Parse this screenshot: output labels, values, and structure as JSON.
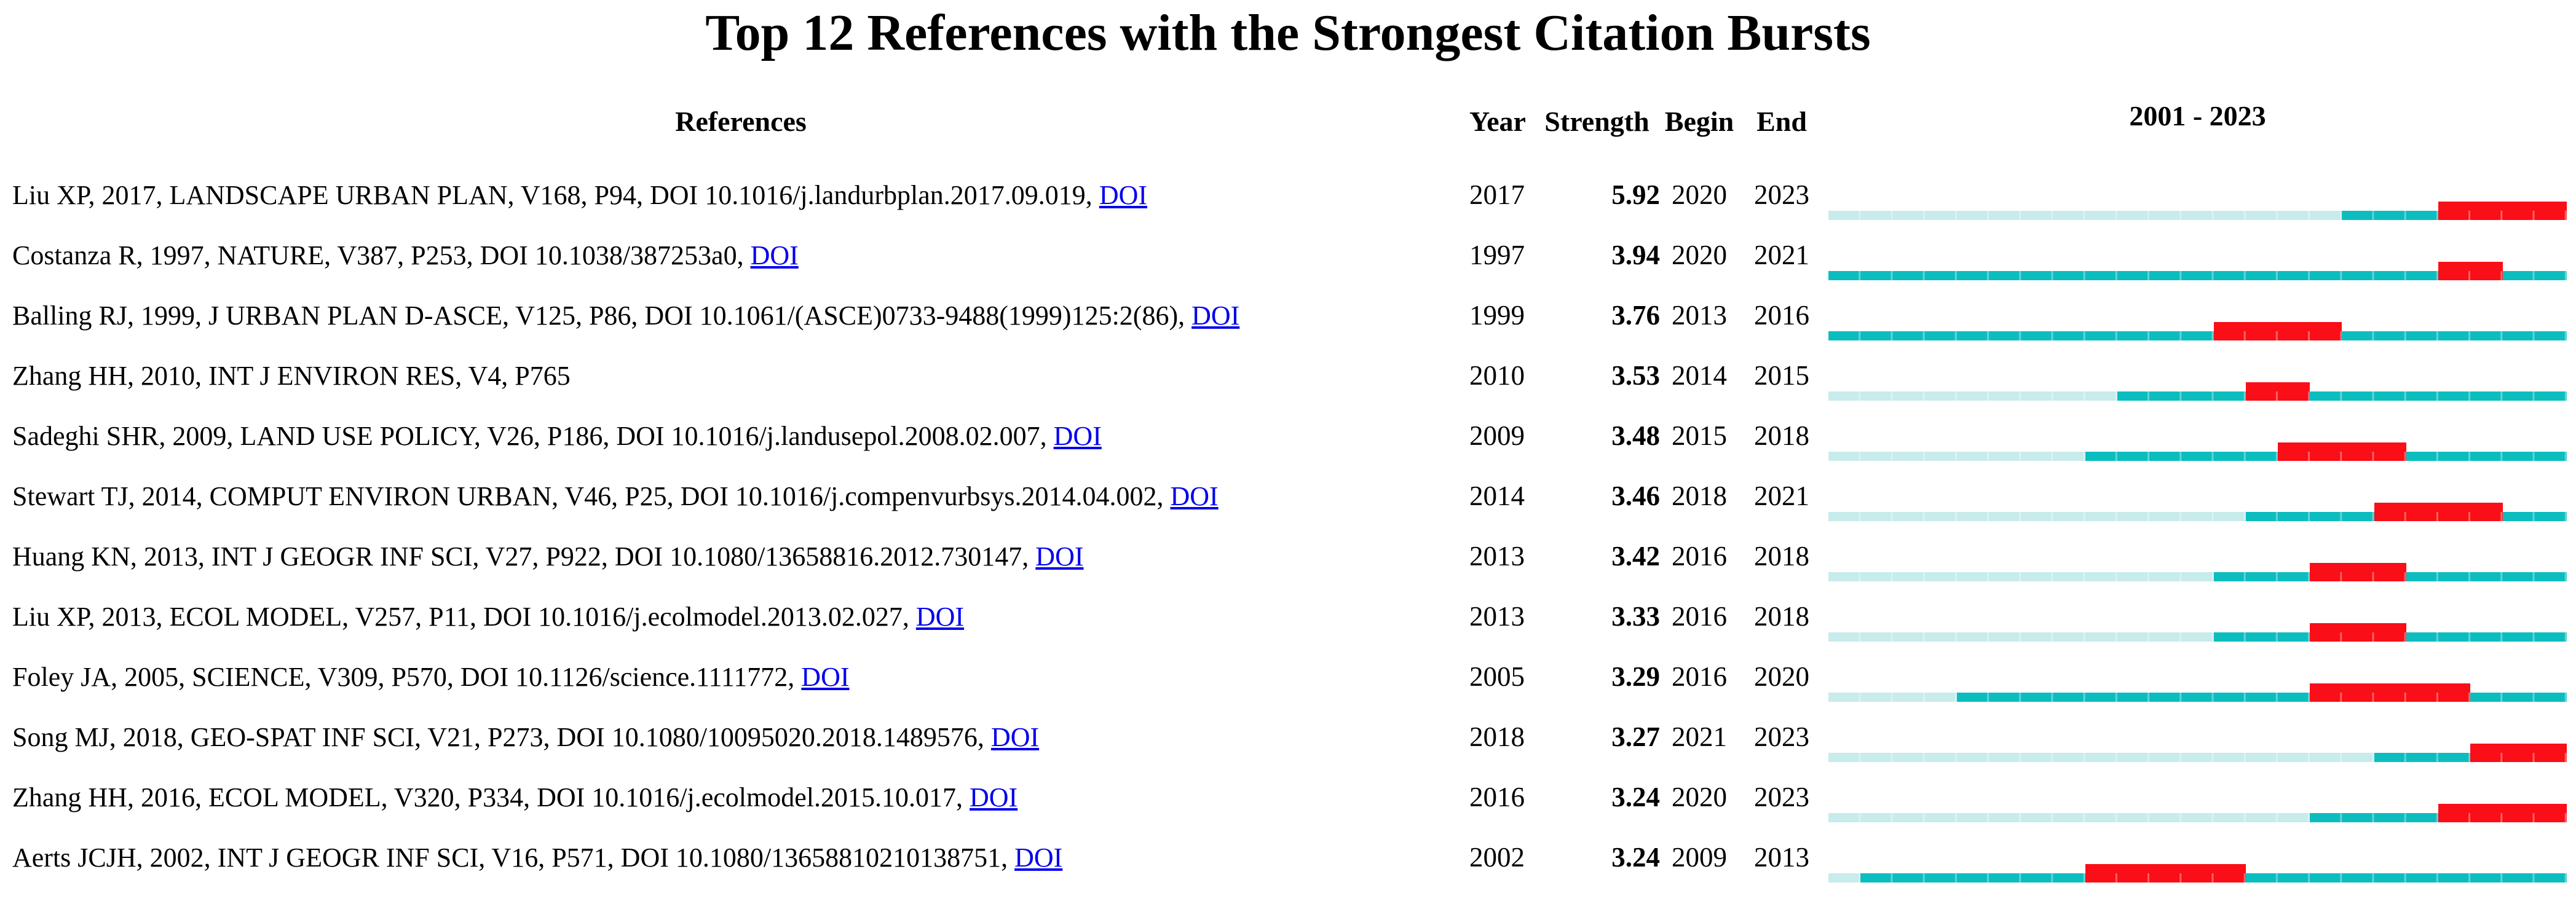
{
  "page": {
    "background": "#ffffff"
  },
  "title": "Top 12 References with the Strongest Citation Bursts",
  "table": {
    "headers": {
      "references": "References",
      "year": "Year",
      "strength": "Strength",
      "begin": "Begin",
      "end": "End",
      "timeline": "2001 - 2023"
    }
  },
  "chart_data": {
    "type": "bar",
    "subtype": "citespace-citation-burst-timeline",
    "title": "Top 12 References with the Strongest Citation Bursts",
    "columns": [
      "References",
      "Year",
      "Strength",
      "Begin",
      "End",
      "2001 - 2023"
    ],
    "timeline_label": "2001 - 2023",
    "timeline_start": 2001,
    "timeline_end": 2023,
    "legend": {
      "pre_publication_color": "#c8ebeb",
      "active_color": "#0cbdbf",
      "burst_color": "#fa0e17"
    },
    "doi_link_color": "#0000EE",
    "rows": [
      {
        "reference": "Liu XP, 2017, LANDSCAPE URBAN PLAN, V168, P94, DOI 10.1016/j.landurbplan.2017.09.019,",
        "doi_label": "DOI",
        "year": 2017,
        "strength": "5.92",
        "begin": 2020,
        "end": 2023
      },
      {
        "reference": "Costanza R, 1997, NATURE, V387, P253, DOI 10.1038/387253a0,",
        "doi_label": "DOI",
        "year": 1997,
        "strength": "3.94",
        "begin": 2020,
        "end": 2021
      },
      {
        "reference": "Balling RJ, 1999, J URBAN PLAN D-ASCE, V125, P86, DOI 10.1061/(ASCE)0733-9488(1999)125:2(86),",
        "doi_label": "DOI",
        "year": 1999,
        "strength": "3.76",
        "begin": 2013,
        "end": 2016
      },
      {
        "reference": "Zhang HH, 2010, INT J ENVIRON RES, V4, P765",
        "doi_label": null,
        "year": 2010,
        "strength": "3.53",
        "begin": 2014,
        "end": 2015
      },
      {
        "reference": "Sadeghi SHR, 2009, LAND USE POLICY, V26, P186, DOI 10.1016/j.landusepol.2008.02.007,",
        "doi_label": "DOI",
        "year": 2009,
        "strength": "3.48",
        "begin": 2015,
        "end": 2018
      },
      {
        "reference": "Stewart TJ, 2014, COMPUT ENVIRON URBAN, V46, P25, DOI 10.1016/j.compenvurbsys.2014.04.002,",
        "doi_label": "DOI",
        "year": 2014,
        "strength": "3.46",
        "begin": 2018,
        "end": 2021
      },
      {
        "reference": "Huang KN, 2013, INT J GEOGR INF SCI, V27, P922, DOI 10.1080/13658816.2012.730147,",
        "doi_label": "DOI",
        "year": 2013,
        "strength": "3.42",
        "begin": 2016,
        "end": 2018
      },
      {
        "reference": "Liu XP, 2013, ECOL MODEL, V257, P11, DOI 10.1016/j.ecolmodel.2013.02.027,",
        "doi_label": "DOI",
        "year": 2013,
        "strength": "3.33",
        "begin": 2016,
        "end": 2018
      },
      {
        "reference": "Foley JA, 2005, SCIENCE, V309, P570, DOI 10.1126/science.1111772,",
        "doi_label": "DOI",
        "year": 2005,
        "strength": "3.29",
        "begin": 2016,
        "end": 2020
      },
      {
        "reference": "Song MJ, 2018, GEO-SPAT INF SCI, V21, P273, DOI 10.1080/10095020.2018.1489576,",
        "doi_label": "DOI",
        "year": 2018,
        "strength": "3.27",
        "begin": 2021,
        "end": 2023
      },
      {
        "reference": "Zhang HH, 2016, ECOL MODEL, V320, P334, DOI 10.1016/j.ecolmodel.2015.10.017,",
        "doi_label": "DOI",
        "year": 2016,
        "strength": "3.24",
        "begin": 2020,
        "end": 2023
      },
      {
        "reference": "Aerts JCJH, 2002, INT J GEOGR INF SCI, V16, P571, DOI 10.1080/13658810210138751,",
        "doi_label": "DOI",
        "year": 2002,
        "strength": "3.24",
        "begin": 2009,
        "end": 2013
      }
    ]
  }
}
